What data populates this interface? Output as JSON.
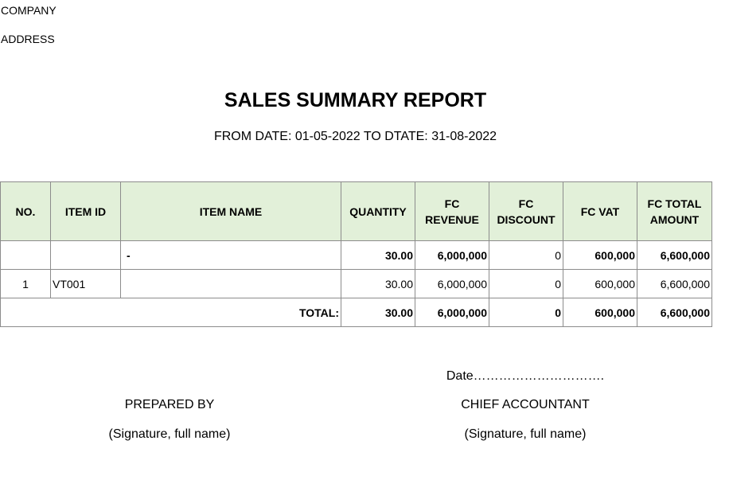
{
  "company": {
    "label": "COMPANY"
  },
  "address": {
    "label": "ADDRESS"
  },
  "report": {
    "title": "SALES SUMMARY REPORT",
    "date_range": "FROM DATE: 01-05-2022 TO DTATE: 31-08-2022"
  },
  "table": {
    "headers": {
      "no": "NO.",
      "item_id": "ITEM ID",
      "item_name": "ITEM NAME",
      "quantity": "QUANTITY",
      "fc_revenue": "FC REVENUE",
      "fc_discount": "FC DISCOUNT",
      "fc_vat": "FC VAT",
      "fc_total_amount": "FC TOTAL AMOUNT"
    },
    "group_row": {
      "no": "",
      "item_id": "",
      "item_name": "-",
      "quantity": "30.00",
      "fc_revenue": "6,000,000",
      "fc_discount": "0",
      "fc_vat": "600,000",
      "fc_total_amount": "6,600,000"
    },
    "rows": [
      {
        "no": "1",
        "item_id": "VT001",
        "item_name": "",
        "quantity": "30.00",
        "fc_revenue": "6,000,000",
        "fc_discount": "0",
        "fc_vat": "600,000",
        "fc_total_amount": "6,600,000"
      }
    ],
    "total_row": {
      "label": "TOTAL:",
      "quantity": "30.00",
      "fc_revenue": "6,000,000",
      "fc_discount": "0",
      "fc_vat": "600,000",
      "fc_total_amount": "6,600,000"
    }
  },
  "signatures": {
    "date_label": "Date………………………….",
    "prepared_by": "PREPARED BY",
    "chief_accountant": "CHIEF ACCOUNTANT",
    "prepared_sign_hint": "(Signature, full name)",
    "chief_sign_hint": "(Signature, full name)"
  }
}
